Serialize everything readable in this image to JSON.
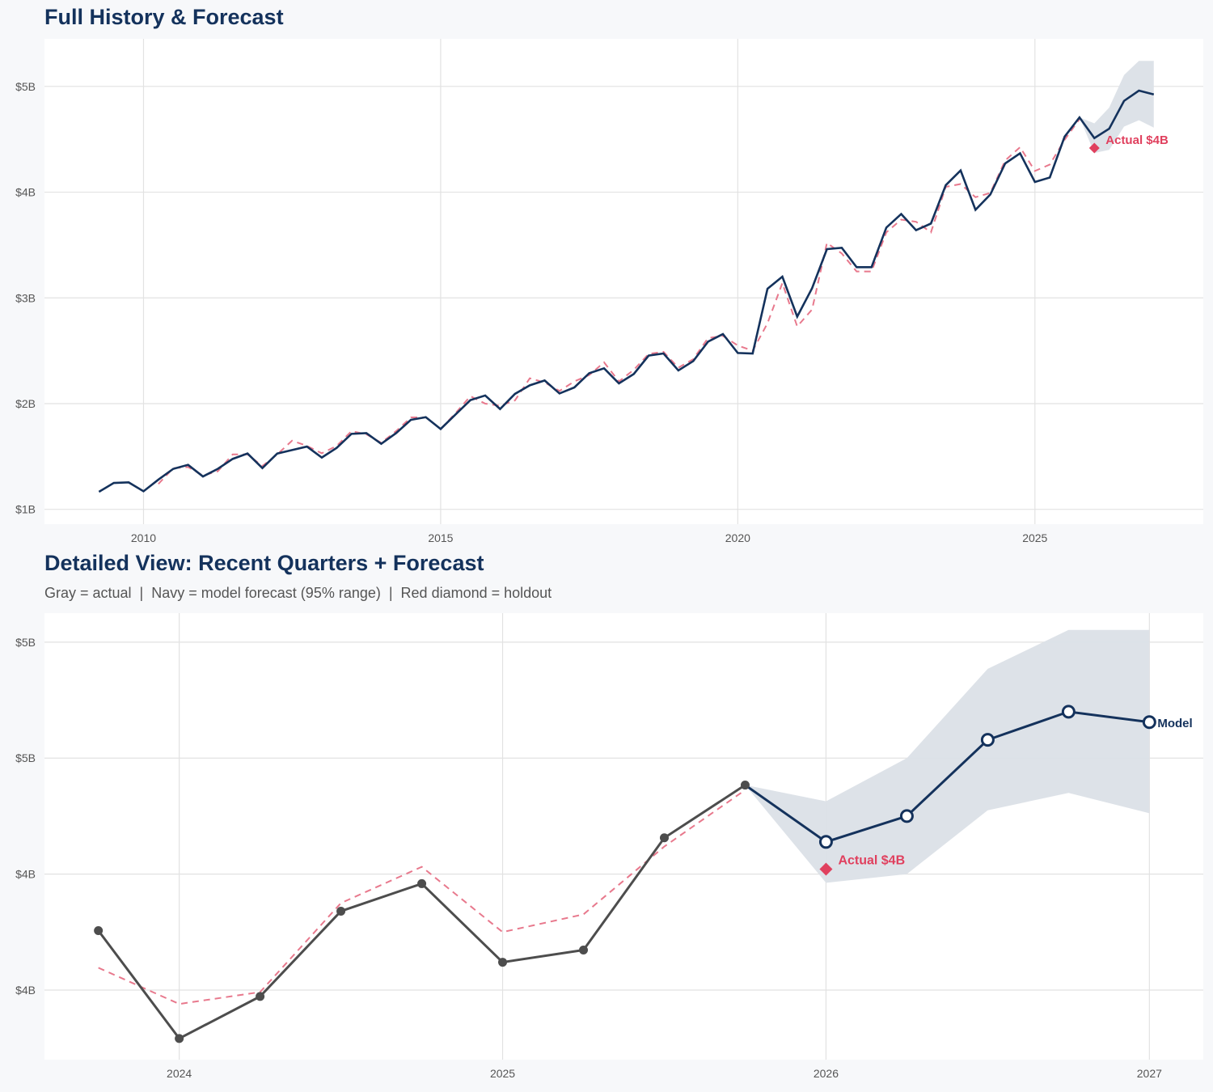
{
  "colors": {
    "navy": "#14325c",
    "actual_gray": "#4d4d4d",
    "fitted_dashed": "#e8798d",
    "holdout_red": "#e0405e",
    "band": "#dbe0e7"
  },
  "chart_data": [
    {
      "type": "line",
      "title": "Full History & Forecast",
      "xlim": [
        "2008-05",
        "2027-11"
      ],
      "ylim": [
        0.86,
        5.45
      ],
      "grid": true,
      "x_ticks": [
        {
          "value": "2010-01",
          "label": "2010"
        },
        {
          "value": "2015-01",
          "label": "2015"
        },
        {
          "value": "2020-01",
          "label": "2020"
        },
        {
          "value": "2025-01",
          "label": "2025"
        }
      ],
      "y_ticks": [
        {
          "value": 1,
          "label": "$1B"
        },
        {
          "value": 2,
          "label": "$2B"
        },
        {
          "value": 3,
          "label": "$3B"
        },
        {
          "value": 4,
          "label": "$4B"
        },
        {
          "value": 5,
          "label": "$5B"
        }
      ],
      "actual": {
        "start": "2009-04",
        "frequency": "quarterly",
        "values": [
          1.166,
          1.25,
          1.255,
          1.171,
          1.281,
          1.383,
          1.421,
          1.311,
          1.383,
          1.477,
          1.528,
          1.39,
          1.528,
          1.561,
          1.594,
          1.49,
          1.581,
          1.714,
          1.721,
          1.62,
          1.721,
          1.847,
          1.872,
          1.76,
          1.897,
          2.033,
          2.077,
          1.949,
          2.092,
          2.173,
          2.219,
          2.096,
          2.153,
          2.288,
          2.334,
          2.191,
          2.28,
          2.454,
          2.474,
          2.314,
          2.402,
          2.586,
          2.658,
          2.479,
          2.474,
          3.086,
          3.201,
          2.823,
          3.091,
          3.461,
          3.474,
          3.29,
          3.29,
          3.665,
          3.793,
          3.64,
          3.703,
          4.066,
          4.205,
          3.833,
          3.978,
          4.272,
          4.367,
          4.096,
          4.138,
          4.525,
          4.707
        ]
      },
      "fitted": {
        "start": "2010-04",
        "frequency": "quarterly",
        "values": [
          1.24,
          1.39,
          1.4,
          1.32,
          1.36,
          1.52,
          1.52,
          1.41,
          1.52,
          1.65,
          1.6,
          1.53,
          1.6,
          1.74,
          1.71,
          1.63,
          1.74,
          1.87,
          1.87,
          1.76,
          1.91,
          2.07,
          2.0,
          1.98,
          2.03,
          2.24,
          2.2,
          2.12,
          2.21,
          2.27,
          2.39,
          2.21,
          2.32,
          2.47,
          2.49,
          2.34,
          2.42,
          2.62,
          2.64,
          2.55,
          2.5,
          2.76,
          3.14,
          2.73,
          2.89,
          3.52,
          3.42,
          3.25,
          3.25,
          3.62,
          3.74,
          3.72,
          3.62,
          4.05,
          4.077,
          3.952,
          3.993,
          4.3,
          4.425,
          4.2,
          4.261,
          4.495,
          4.69
        ]
      },
      "forecast": {
        "dates": [
          "2025-10",
          "2026-01",
          "2026-04",
          "2026-07",
          "2026-10",
          "2027-01"
        ],
        "values": [
          4.707,
          4.511,
          4.6,
          4.863,
          4.96,
          4.924
        ],
        "lower_95": [
          4.707,
          4.37,
          4.4,
          4.62,
          4.68,
          4.61
        ],
        "upper_95": [
          4.707,
          4.651,
          4.8,
          5.108,
          5.242,
          5.242
        ]
      },
      "holdout": {
        "date": "2026-01",
        "value": 4.417,
        "label": "Actual $4B"
      }
    },
    {
      "type": "line",
      "title": "Detailed View: Recent Quarters + Forecast",
      "subtitle": "Gray = actual  |  Navy = model forecast (95% range)  |  Red diamond = holdout",
      "xlim": [
        "2023-08",
        "2027-03"
      ],
      "ylim": [
        3.76,
        5.3
      ],
      "grid": true,
      "x_ticks": [
        {
          "value": "2024-01",
          "label": "2024"
        },
        {
          "value": "2025-01",
          "label": "2025"
        },
        {
          "value": "2026-01",
          "label": "2026"
        },
        {
          "value": "2027-01",
          "label": "2027"
        }
      ],
      "y_ticks": [
        {
          "value": 4.0,
          "label": "$4B"
        },
        {
          "value": 4.4,
          "label": "$4B"
        },
        {
          "value": 4.8,
          "label": "$5B"
        },
        {
          "value": 5.2,
          "label": "$5B"
        }
      ],
      "actual": {
        "dates": [
          "2023-10",
          "2024-01",
          "2024-04",
          "2024-07",
          "2024-10",
          "2025-01",
          "2025-04",
          "2025-07",
          "2025-10"
        ],
        "values": [
          4.205,
          3.833,
          3.978,
          4.272,
          4.367,
          4.096,
          4.138,
          4.525,
          4.707
        ]
      },
      "fitted": {
        "dates": [
          "2023-10",
          "2024-01",
          "2024-04",
          "2024-07",
          "2024-10",
          "2025-01",
          "2025-04",
          "2025-07",
          "2025-10"
        ],
        "values": [
          4.077,
          3.952,
          3.993,
          4.3,
          4.425,
          4.2,
          4.261,
          4.495,
          4.69
        ]
      },
      "forecast": {
        "dates": [
          "2025-10",
          "2026-01",
          "2026-04",
          "2026-07",
          "2026-10",
          "2027-01"
        ],
        "values": [
          4.707,
          4.511,
          4.6,
          4.863,
          4.96,
          4.924
        ],
        "lower_95": [
          4.707,
          4.37,
          4.4,
          4.62,
          4.68,
          4.61
        ],
        "upper_95": [
          4.707,
          4.651,
          4.8,
          5.108,
          5.242,
          5.242
        ],
        "end_label": "Model"
      },
      "holdout": {
        "date": "2026-01",
        "value": 4.417,
        "label": "Actual $4B"
      }
    }
  ]
}
